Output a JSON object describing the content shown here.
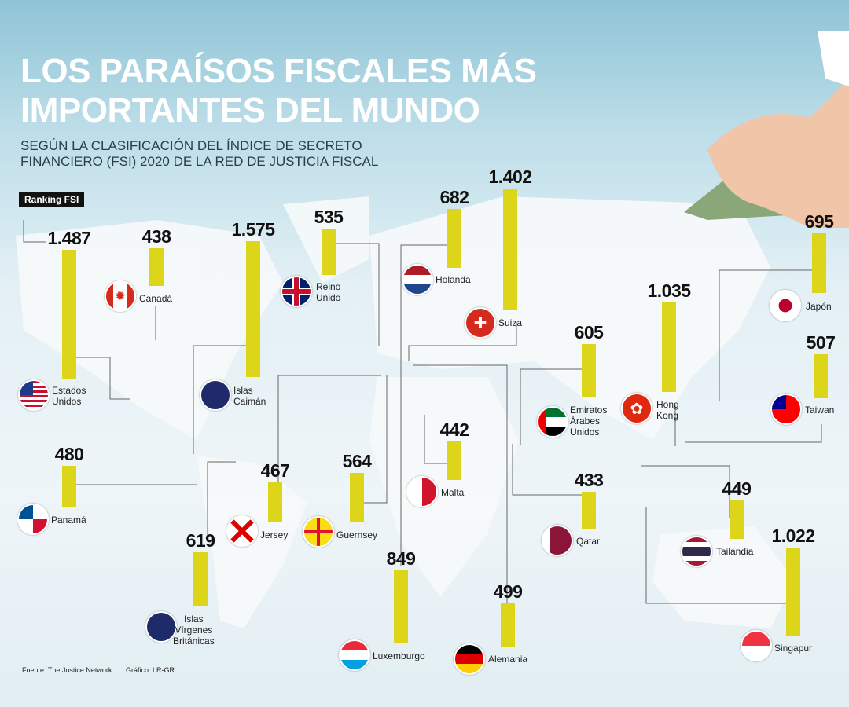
{
  "header": {
    "title": "LOS PARAÍSOS FISCALES MÁS IMPORTANTES DEL MUNDO",
    "subtitle": "SEGÚN LA CLASIFICACIÓN DEL ÍNDICE DE SECRETO FINANCIERO (FSI) 2020 DE LA RED DE JUSTICIA FISCAL",
    "legend_label": "Ranking FSI"
  },
  "footer": {
    "source": "Fuente: The Justice Network",
    "credit": "Gráfico: LR-GR"
  },
  "chart_data": {
    "type": "bar",
    "title": "Los paraísos fiscales más importantes del mundo",
    "ylabel": "Ranking FSI",
    "bar_color": "#dcd51a",
    "categories": [
      "Estados\nUnidos",
      "Canadá",
      "Islas\nCaimán",
      "Reino\nUnido",
      "Holanda",
      "Suiza",
      "Japón",
      "Hong\nKong",
      "Taiwan",
      "Emiratos\nÁrabes\nUnidos",
      "Malta",
      "Qatar",
      "Tailandia",
      "Singapur",
      "Panamá",
      "Jersey",
      "Guernsey",
      "Islas\nVírgenes\nBritánicas",
      "Luxemburgo",
      "Alemania"
    ],
    "values": [
      1487,
      438,
      1575,
      535,
      682,
      1402,
      695,
      1035,
      507,
      605,
      442,
      433,
      449,
      1022,
      480,
      467,
      564,
      619,
      849,
      499
    ],
    "value_labels": [
      "1.487",
      "438",
      "1.575",
      "535",
      "682",
      "1.402",
      "695",
      "1.035",
      "507",
      "605",
      "442",
      "433",
      "449",
      "1.022",
      "480",
      "467",
      "564",
      "619",
      "849",
      "499"
    ]
  }
}
